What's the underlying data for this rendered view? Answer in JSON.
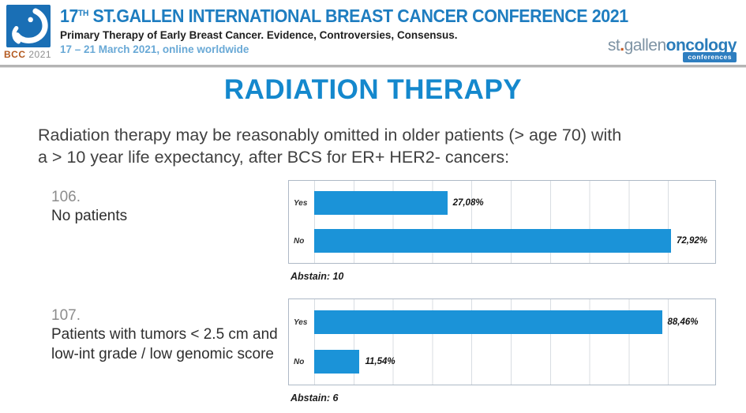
{
  "header": {
    "logo": {
      "bcc": "BCC",
      "year": "2021"
    },
    "title_num": "17",
    "title_sup": "TH",
    "title_rest": " ST.GALLEN INTERNATIONAL BREAST CANCER CONFERENCE 2021",
    "subtitle": "Primary Therapy of Early Breast Cancer. Evidence, Controversies, Consensus.",
    "date_line": "17 – 21 March 2021, online worldwide",
    "brand": {
      "st": "st",
      "dot": ".",
      "gallen": "gallen",
      "oncology": "oncology",
      "badge": "conferences"
    }
  },
  "page_title": "RADIATION THERAPY",
  "question": {
    "line1": "Radiation therapy may be reasonably omitted in older patients (> age 70)  with",
    "line2": "a > 10 year life expectancy, after BCS for ER+ HER2- cancers:"
  },
  "colors": {
    "bar_blue": "#1b93d8",
    "heading_blue": "#1488cd",
    "conference_title_blue": "#1e7dc0",
    "date_blue": "#69a9d6",
    "brand_gray": "#7e93a4",
    "brand_blue": "#2a7cba",
    "bcc_orange": "#b3591f"
  },
  "chart_data": [
    {
      "type": "bar",
      "orientation": "horizontal",
      "question_number": "106.",
      "question_label": "No patients",
      "categories": [
        "Yes",
        "No"
      ],
      "values": [
        27.08,
        72.92
      ],
      "value_labels": [
        "27,08%",
        "72,92%"
      ],
      "abstain": "Abstain: 10",
      "xlim": [
        0,
        80
      ],
      "grid": true,
      "legend": "none",
      "bar_color": "#1b93d8"
    },
    {
      "type": "bar",
      "orientation": "horizontal",
      "question_number": "107.",
      "question_label": "Patients with tumors < 2.5 cm and low-int grade / low genomic score",
      "categories": [
        "Yes",
        "No"
      ],
      "values": [
        88.46,
        11.54
      ],
      "value_labels": [
        "88,46%",
        "11,54%"
      ],
      "abstain": "Abstain: 6",
      "xlim": [
        0,
        100
      ],
      "grid": true,
      "legend": "none",
      "bar_color": "#1b93d8"
    }
  ]
}
